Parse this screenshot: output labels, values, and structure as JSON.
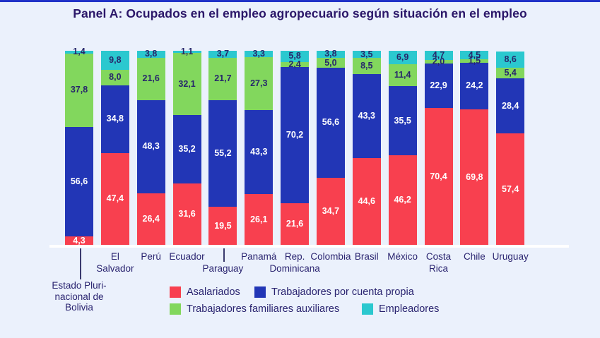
{
  "chart_data": {
    "type": "bar",
    "stacked": true,
    "orientation": "vertical",
    "unit": "percent",
    "title": "Panel A: Ocupados en el empleo agropecuario según situación en el empleo",
    "ylim": [
      0,
      100
    ],
    "grid": false,
    "legend_position": "bottom",
    "categories": [
      {
        "label": "Estado Plurinacional de Bolivia",
        "lines": [
          "Estado Pluri-",
          "nacional de",
          "Bolivia"
        ],
        "row": 3,
        "tick": true
      },
      {
        "label": "El Salvador",
        "lines": [
          "El",
          "Salvador"
        ],
        "row": 1,
        "tick": false
      },
      {
        "label": "Perú",
        "lines": [
          "Perú"
        ],
        "row": 1,
        "tick": false
      },
      {
        "label": "Ecuador",
        "lines": [
          "Ecuador"
        ],
        "row": 1,
        "tick": false
      },
      {
        "label": "Paraguay",
        "lines": [
          "Paraguay"
        ],
        "row": 2,
        "tick": true
      },
      {
        "label": "Panamá",
        "lines": [
          "Panamá"
        ],
        "row": 1,
        "tick": false
      },
      {
        "label": "Rep. Dominicana",
        "lines": [
          "Rep.",
          "Dominicana"
        ],
        "row": 1,
        "tick": false
      },
      {
        "label": "Colombia",
        "lines": [
          "Colombia"
        ],
        "row": 1,
        "tick": false
      },
      {
        "label": "Brasil",
        "lines": [
          "Brasil"
        ],
        "row": 1,
        "tick": false
      },
      {
        "label": "México",
        "lines": [
          "México"
        ],
        "row": 1,
        "tick": false
      },
      {
        "label": "Costa Rica",
        "lines": [
          "Costa",
          "Rica"
        ],
        "row": 1,
        "tick": false
      },
      {
        "label": "Chile",
        "lines": [
          "Chile"
        ],
        "row": 1,
        "tick": false
      },
      {
        "label": "Uruguay",
        "lines": [
          "Uruguay"
        ],
        "row": 1,
        "tick": false
      }
    ],
    "series": [
      {
        "name": "Asalariados",
        "color": "#F8404F",
        "label_color": "#FFFFFF",
        "values": [
          "4,3",
          "47,4",
          "26,4",
          "31,6",
          "19,5",
          "26,1",
          "21,6",
          "34,7",
          "44,6",
          "46,2",
          "70,4",
          "69,8",
          "57,4"
        ]
      },
      {
        "name": "Trabajadores por cuenta propia",
        "color": "#2236B6",
        "label_color": "#FFFFFF",
        "values": [
          "56,6",
          "34,8",
          "48,3",
          "35,2",
          "55,2",
          "43,3",
          "70,2",
          "56,6",
          "43,3",
          "35,5",
          "22,9",
          "24,2",
          "28,4"
        ]
      },
      {
        "name": "Trabajadores familiares auxiliares",
        "color": "#82D75D",
        "label_color": "#27276B",
        "values": [
          "37,8",
          "8,0",
          "21,6",
          "32,1",
          "21,7",
          "27,3",
          "2,4",
          "5,0",
          "8,5",
          "11,4",
          "2,0",
          "1,5",
          "5,4"
        ]
      },
      {
        "name": "Empleadores",
        "color": "#2BC8CF",
        "label_color": "#27276B",
        "values": [
          "1,4",
          "9,8",
          "3,8",
          "1,1",
          "3,7",
          "3,3",
          "5,8",
          "3,8",
          "3,5",
          "6,9",
          "4,7",
          "4,5",
          "8,6"
        ]
      }
    ]
  },
  "colors": {
    "background": "#EBF1FC",
    "top_border": "#2032C8",
    "title_text": "#2B1769",
    "axis_line": "#FFFFFF",
    "category_text": "#2A2470",
    "tick_line": "#3A3A6E"
  }
}
